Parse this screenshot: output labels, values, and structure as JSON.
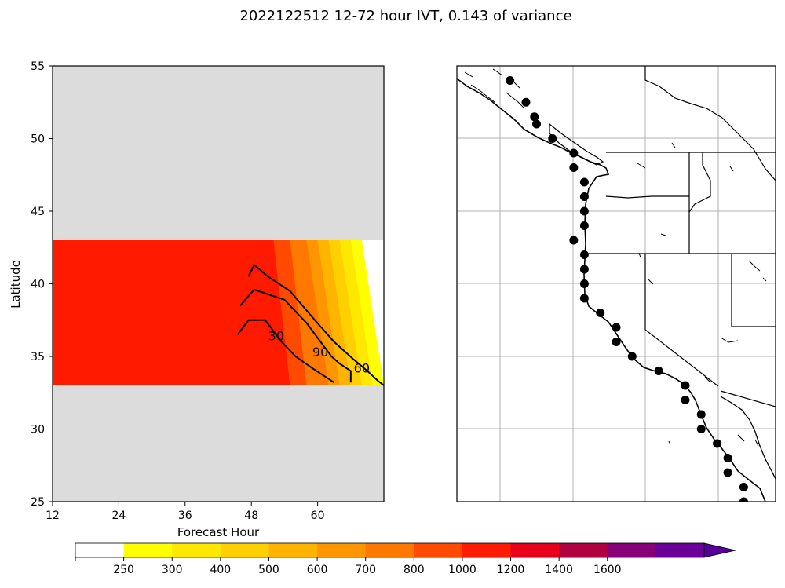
{
  "title": "2022122512 12-72 hour IVT, 0.143 of variance",
  "chart_data": [
    {
      "type": "contour",
      "panel": "left",
      "xlabel": "Forecast Hour",
      "ylabel": "Latitude",
      "xlim": [
        12,
        72
      ],
      "ylim": [
        25,
        55
      ],
      "xticks": [
        "12",
        "24",
        "36",
        "48",
        "60"
      ],
      "yticks": [
        "25",
        "30",
        "35",
        "40",
        "45",
        "50",
        "55"
      ],
      "masked_color": "#dcdcdc",
      "data_lat_range": [
        33,
        43
      ],
      "filled_ivt_bands": [
        {
          "level": "250",
          "color": "#ffff00",
          "points": [
            [
              12,
              43
            ],
            [
              68,
              43
            ],
            [
              72,
              33
            ],
            [
              12,
              33
            ]
          ]
        },
        {
          "level": "300",
          "color": "#ffe800",
          "points": [
            [
              12,
              43
            ],
            [
              66,
              43
            ],
            [
              70,
              33
            ],
            [
              12,
              33
            ]
          ]
        },
        {
          "level": "400",
          "color": "#ffd000",
          "points": [
            [
              12,
              43
            ],
            [
              64,
              43
            ],
            [
              68,
              33
            ],
            [
              12,
              33
            ]
          ]
        },
        {
          "level": "500",
          "color": "#ffb400",
          "points": [
            [
              12,
              43
            ],
            [
              62,
              43
            ],
            [
              66,
              33
            ],
            [
              12,
              33
            ]
          ]
        },
        {
          "level": "600",
          "color": "#ff9600",
          "points": [
            [
              12,
              43
            ],
            [
              60,
              43
            ],
            [
              64,
              33
            ],
            [
              12,
              33
            ]
          ]
        },
        {
          "level": "700",
          "color": "#ff7800",
          "points": [
            [
              12,
              43
            ],
            [
              58,
              43
            ],
            [
              62,
              33
            ],
            [
              12,
              33
            ]
          ]
        },
        {
          "level": "800",
          "color": "#ff4a00",
          "points": [
            [
              12,
              43
            ],
            [
              55,
              43
            ],
            [
              58,
              33
            ],
            [
              12,
              33
            ]
          ]
        },
        {
          "level": "1000",
          "color": "#ff1a00",
          "points": [
            [
              12,
              43
            ],
            [
              52,
              43
            ],
            [
              55,
              33
            ],
            [
              12,
              33
            ]
          ]
        }
      ],
      "mean_contours": [
        {
          "label": "30",
          "points": [
            [
              45.5,
              36.5
            ],
            [
              47.5,
              37.5
            ],
            [
              50.5,
              37.5
            ],
            [
              53.5,
              36
            ],
            [
              56,
              35
            ],
            [
              59,
              34.2
            ],
            [
              63,
              33.2
            ]
          ]
        },
        {
          "label": "60",
          "points": [
            [
              46,
              38.5
            ],
            [
              48.5,
              39.6
            ],
            [
              54,
              38.9
            ],
            [
              58,
              37.3
            ],
            [
              62.5,
              35
            ],
            [
              64,
              34.5
            ],
            [
              66,
              34
            ],
            [
              66,
              33.2
            ]
          ]
        },
        {
          "label": "90",
          "points": [
            [
              47.5,
              40.5
            ],
            [
              48.5,
              41.3
            ],
            [
              51,
              40.5
            ],
            [
              55,
              39.5
            ],
            [
              59.5,
              37.5
            ],
            [
              63,
              36
            ],
            [
              66.5,
              34.8
            ],
            [
              69,
              34
            ],
            [
              71,
              33.3
            ],
            [
              72,
              33
            ]
          ]
        }
      ],
      "contour_labels": [
        {
          "text": "30",
          "x": 52.5,
          "y": 36.1
        },
        {
          "text": "90",
          "x": 60.5,
          "y": 35.0
        },
        {
          "text": "60",
          "x": 68,
          "y": 33.9
        }
      ]
    },
    {
      "type": "map",
      "panel": "right",
      "region": "US West Coast",
      "lon_range": [
        -140,
        -110
      ],
      "lat_range": [
        25,
        55
      ],
      "stations": [
        [
          -135,
          54
        ],
        [
          -133.5,
          52.5
        ],
        [
          -132.7,
          51.5
        ],
        [
          -132.5,
          51
        ],
        [
          -131,
          50
        ],
        [
          -129,
          49
        ],
        [
          -129,
          48
        ],
        [
          -128,
          47
        ],
        [
          -128,
          46
        ],
        [
          -128,
          45
        ],
        [
          -128,
          44
        ],
        [
          -129,
          43
        ],
        [
          -128,
          42
        ],
        [
          -128,
          41
        ],
        [
          -128,
          40
        ],
        [
          -128,
          39
        ],
        [
          -126.5,
          38
        ],
        [
          -125,
          37
        ],
        [
          -125,
          36
        ],
        [
          -123.5,
          35
        ],
        [
          -121,
          34
        ],
        [
          -118.5,
          33
        ],
        [
          -118.5,
          32
        ],
        [
          -117,
          31
        ],
        [
          -117,
          30
        ],
        [
          -115.5,
          29
        ],
        [
          -114.5,
          28
        ],
        [
          -114.5,
          27
        ],
        [
          -113,
          26
        ],
        [
          -113,
          25
        ]
      ]
    }
  ],
  "colorbar": {
    "labels": [
      "250",
      "300",
      "400",
      "500",
      "600",
      "700",
      "800",
      "1000",
      "1200",
      "1400",
      "1600"
    ],
    "colors": [
      "#ffffff",
      "#ffff00",
      "#ffe800",
      "#ffd000",
      "#ffb400",
      "#ff9600",
      "#ff7800",
      "#ff4a00",
      "#ff1a00",
      "#e8001a",
      "#b00040",
      "#880078",
      "#6a0098",
      "#550096"
    ]
  }
}
